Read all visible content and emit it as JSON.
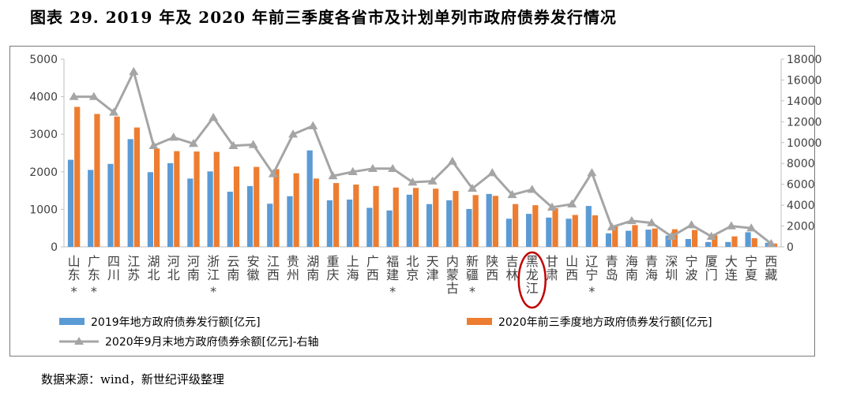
{
  "title": "图表 29. 2019 年及 2020 年前三季度各省市及计划单列市政府债券发行情况",
  "source": "数据来源：wind，新世纪评级整理",
  "colors": {
    "bar_2019": "#5b9bd5",
    "bar_2020": "#ed7d31",
    "line_balance": "#a5a5a5",
    "highlight_circle": "#c00000",
    "axis_text": "#404040"
  },
  "chart_data": {
    "type": "bar",
    "categories": [
      "山东*",
      "广东*",
      "四川",
      "江苏",
      "湖北",
      "河北",
      "河南",
      "浙江*",
      "云南",
      "安徽",
      "江西",
      "贵州",
      "湖南",
      "重庆",
      "上海",
      "广西",
      "福建*",
      "北京",
      "天津",
      "内蒙古",
      "新疆*",
      "陕西",
      "吉林",
      "黑龙江",
      "甘肃",
      "山西",
      "辽宁*",
      "青岛",
      "海南",
      "青海",
      "深圳",
      "宁波",
      "厦门",
      "大连",
      "宁夏",
      "西藏"
    ],
    "category_labels": [
      [
        "山",
        "东",
        "*"
      ],
      [
        "广",
        "东",
        "*"
      ],
      [
        "四",
        "川"
      ],
      [
        "江",
        "苏"
      ],
      [
        "湖",
        "北"
      ],
      [
        "河",
        "北"
      ],
      [
        "河",
        "南"
      ],
      [
        "浙",
        "江",
        "*"
      ],
      [
        "云",
        "南"
      ],
      [
        "安",
        "徽"
      ],
      [
        "江",
        "西"
      ],
      [
        "贵",
        "州"
      ],
      [
        "湖",
        "南"
      ],
      [
        "重",
        "庆"
      ],
      [
        "上",
        "海"
      ],
      [
        "广",
        "西"
      ],
      [
        "福",
        "建",
        "*"
      ],
      [
        "北",
        "京"
      ],
      [
        "天",
        "津"
      ],
      [
        "内",
        "蒙",
        "古"
      ],
      [
        "新",
        "疆",
        "*"
      ],
      [
        "陕",
        "西"
      ],
      [
        "吉",
        "林"
      ],
      [
        "黑",
        "龙",
        "江"
      ],
      [
        "甘",
        "肃"
      ],
      [
        "山",
        "西"
      ],
      [
        "辽",
        "宁",
        "*"
      ],
      [
        "青",
        "岛"
      ],
      [
        "海",
        "南"
      ],
      [
        "青",
        "海"
      ],
      [
        "深",
        "圳"
      ],
      [
        "宁",
        "波"
      ],
      [
        "厦",
        "门"
      ],
      [
        "大",
        "连"
      ],
      [
        "宁",
        "夏"
      ],
      [
        "西",
        "藏"
      ]
    ],
    "highlighted_category": "黑龙江",
    "series": [
      {
        "name": "2019年地方政府债券发行额[亿元]",
        "axis": "left",
        "kind": "bar",
        "values": [
          2320,
          2050,
          2210,
          2870,
          1990,
          2230,
          1820,
          2010,
          1470,
          1620,
          1150,
          1350,
          2570,
          1240,
          1260,
          1040,
          970,
          1390,
          1140,
          1240,
          1010,
          1410,
          750,
          880,
          780,
          750,
          1090,
          360,
          430,
          460,
          300,
          210,
          130,
          130,
          390,
          110
        ]
      },
      {
        "name": "2020年前三季度地方政府债券发行额[亿元]",
        "axis": "left",
        "kind": "bar",
        "values": [
          3730,
          3540,
          3470,
          3180,
          2620,
          2550,
          2540,
          2530,
          2140,
          2130,
          2070,
          1960,
          1820,
          1700,
          1660,
          1620,
          1580,
          1570,
          1550,
          1490,
          1380,
          1360,
          1140,
          1110,
          1030,
          850,
          840,
          560,
          580,
          490,
          470,
          450,
          310,
          280,
          230,
          90
        ]
      },
      {
        "name": "2020年9月末地方政府债券余额[亿元]-右轴",
        "axis": "right",
        "kind": "line",
        "values": [
          14400,
          14400,
          12900,
          16800,
          9700,
          10500,
          9900,
          12400,
          9700,
          9800,
          7000,
          10800,
          11600,
          6800,
          7200,
          7500,
          7500,
          6200,
          6300,
          8200,
          5600,
          7100,
          5000,
          5500,
          3800,
          4100,
          7100,
          1900,
          2500,
          2300,
          1000,
          2100,
          1000,
          2000,
          1800,
          300
        ]
      }
    ],
    "y_left": {
      "min": 0,
      "max": 5000,
      "ticks": [
        "0",
        "1000",
        "2000",
        "3000",
        "4000",
        "5000"
      ]
    },
    "y_right": {
      "min": 0,
      "max": 18000,
      "ticks": [
        "0",
        "2000",
        "4000",
        "6000",
        "8000",
        "10000",
        "12000",
        "14000",
        "16000",
        "18000"
      ]
    },
    "grid": false,
    "legend_position": "bottom"
  }
}
